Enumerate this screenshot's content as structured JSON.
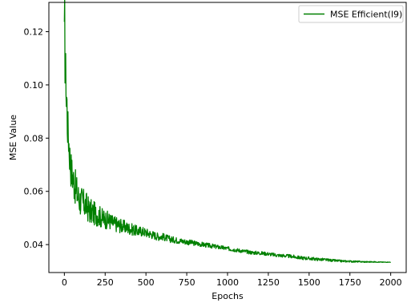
{
  "chart_data": {
    "type": "line",
    "title": "",
    "xlabel": "Epochs",
    "ylabel": "MSE Value",
    "xlim": [
      -95,
      2095
    ],
    "ylim": [
      0.0295,
      0.131
    ],
    "x_ticks": [
      0,
      250,
      500,
      750,
      1000,
      1250,
      1500,
      1750,
      2000
    ],
    "y_ticks": [
      0.04,
      0.06,
      0.08,
      0.1,
      0.12
    ],
    "x_tick_labels": [
      "0",
      "250",
      "500",
      "750",
      "1000",
      "1250",
      "1500",
      "1750",
      "2000"
    ],
    "y_tick_labels": [
      "0.04",
      "0.06",
      "0.08",
      "0.10",
      "0.12"
    ],
    "grid": false,
    "legend": {
      "position": "top-right"
    },
    "series": [
      {
        "name": "MSE Efficient(l9)",
        "color": "#008000",
        "x": [
          0,
          2,
          4,
          6,
          8,
          10,
          12,
          15,
          18,
          22,
          26,
          30,
          35,
          40,
          45,
          50,
          60,
          70,
          80,
          90,
          100,
          115,
          130,
          150,
          170,
          190,
          210,
          230,
          250,
          275,
          300,
          325,
          350,
          375,
          400,
          425,
          450,
          475,
          500,
          525,
          550,
          575,
          600,
          650,
          700,
          750,
          800,
          850,
          900,
          950,
          1000,
          1050,
          1100,
          1150,
          1200,
          1250,
          1300,
          1350,
          1400,
          1450,
          1500,
          1550,
          1600,
          1650,
          1700,
          1750,
          1800,
          1850,
          1900,
          1950,
          2000
        ],
        "y": [
          0.117,
          0.126,
          0.108,
          0.111,
          0.105,
          0.102,
          0.094,
          0.096,
          0.086,
          0.083,
          0.08,
          0.076,
          0.072,
          0.069,
          0.067,
          0.066,
          0.063,
          0.061,
          0.059,
          0.057,
          0.0565,
          0.0555,
          0.055,
          0.053,
          0.052,
          0.0515,
          0.051,
          0.05,
          0.0495,
          0.049,
          0.048,
          0.0475,
          0.047,
          0.0465,
          0.046,
          0.0455,
          0.045,
          0.045,
          0.0445,
          0.044,
          0.0435,
          0.043,
          0.043,
          0.042,
          0.0415,
          0.041,
          0.0405,
          0.04,
          0.0395,
          0.039,
          0.0385,
          0.038,
          0.0375,
          0.037,
          0.0368,
          0.0365,
          0.036,
          0.0358,
          0.0355,
          0.035,
          0.0348,
          0.0345,
          0.0343,
          0.034,
          0.0338,
          0.0337,
          0.0336,
          0.0335,
          0.0335,
          0.0334,
          0.0334
        ]
      }
    ]
  }
}
